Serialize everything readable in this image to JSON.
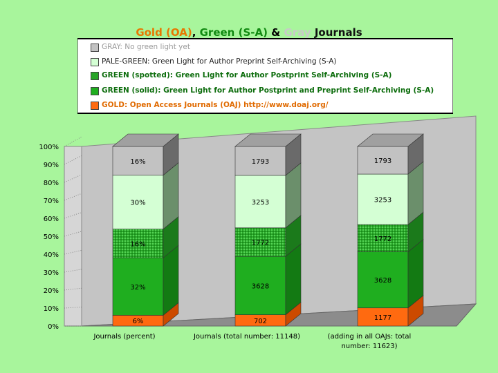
{
  "chart_data": {
    "type": "bar",
    "stacked": true,
    "title_parts": [
      {
        "text": "Gold (OA)",
        "color": "#e87700"
      },
      {
        "text": ", ",
        "color": "#000000"
      },
      {
        "text": "Green (S-A)",
        "color": "#118a11"
      },
      {
        "text": " & ",
        "color": "#000000"
      },
      {
        "text": "Gray",
        "color": "#c9c9c9"
      },
      {
        "text": " Journals",
        "color": "#111111"
      }
    ],
    "categories": [
      {
        "line1": "Journals (percent)",
        "line2": ""
      },
      {
        "line1": "Journals (total number: 11148)",
        "line2": ""
      },
      {
        "line1": "(adding in all OAJs: total",
        "line2": "number: 11623)"
      }
    ],
    "ylim": [
      0,
      100
    ],
    "yticks": [
      "0%",
      "10%",
      "20%",
      "30%",
      "40%",
      "50%",
      "60%",
      "70%",
      "80%",
      "90%",
      "100%"
    ],
    "series": [
      {
        "name": "GOLD",
        "legend": "GOLD: Open Access Journals (OAJ) http://www.doaj.org/",
        "bold": true,
        "color": "#ff6a10",
        "side": "#cc4a00",
        "top": "#ff8a40",
        "values": [
          6,
          6.3,
          10.1
        ],
        "labels": [
          "6%",
          "702",
          "1177"
        ]
      },
      {
        "name": "GREEN (solid)",
        "legend": "GREEN (solid): Green Light for Author Postprint and Preprint Self-Archiving (S-A)",
        "bold": true,
        "color": "#1fae1f",
        "side": "#137a13",
        "top": "#33c433",
        "values": [
          32,
          32.5,
          31.2
        ],
        "labels": [
          "32%",
          "3628",
          "3628"
        ]
      },
      {
        "name": "GREEN (spotted)",
        "legend": "GREEN (spotted): Green Light for Author Postprint Self-Archiving (S-A)",
        "bold": true,
        "color": "#28a428",
        "side": "#1b7a1b",
        "top": "#40c040",
        "pattern": true,
        "values": [
          16,
          15.9,
          15.2
        ],
        "labels": [
          "16%",
          "1772",
          "1772"
        ]
      },
      {
        "name": "PALE-GREEN",
        "legend": "PALE-GREEN: Green Light for Author Preprint Self-Archiving (S-A)",
        "bold": false,
        "color": "#d4ffd4",
        "side": "#6b8f6b",
        "top": "#e9ffe9",
        "values": [
          30,
          29.2,
          28.1
        ],
        "labels": [
          "30%",
          "3253",
          "3253"
        ]
      },
      {
        "name": "GRAY",
        "legend": "GRAY: No green light yet",
        "bold": false,
        "color": "#c2c2c2",
        "side": "#6a6a6a",
        "top": "#a0a0a0",
        "values": [
          16,
          16.1,
          15.4
        ],
        "labels": [
          "16%",
          "1793",
          "1793"
        ]
      }
    ]
  }
}
